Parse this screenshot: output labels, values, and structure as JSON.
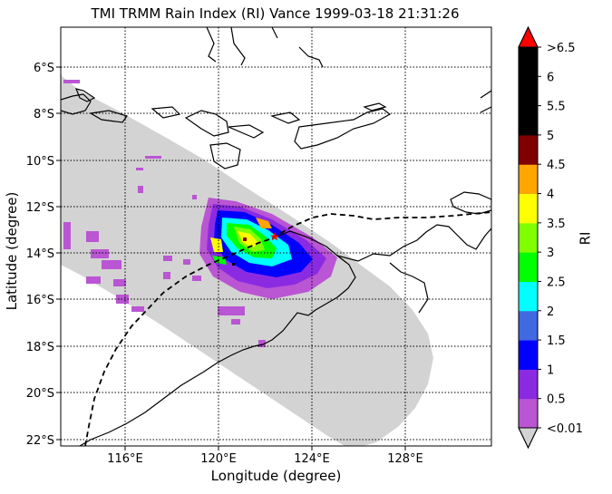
{
  "title": "TMI TRMM Rain Index (RI) Vance 1999-03-18 21:31:26",
  "xlabel": "Longitude (degree)",
  "ylabel": "Latitude (degree)",
  "colorbar": {
    "label": "RI",
    "tick_labels": [
      "<0.01",
      "0.5",
      "1",
      "1.5",
      "2",
      "2.5",
      "3",
      "3.5",
      "4",
      "4.5",
      "5",
      "5.5",
      "6",
      ">6.5"
    ],
    "colors": [
      "#ba55d3",
      "#8a2be2",
      "#0000ff",
      "#4169e1",
      "#00ffff",
      "#00ff00",
      "#7fff00",
      "#ffff00",
      "#ffa500",
      "#800000",
      "#000000",
      "#000000",
      "#000000"
    ],
    "under_color": "#d3d3d3",
    "over_color": "#ff0000"
  },
  "map": {
    "lon_ticks": [
      "116°E",
      "120°E",
      "124°E",
      "128°E"
    ],
    "lat_ticks": [
      "6°S",
      "8°S",
      "10°S",
      "12°S",
      "14°S",
      "16°S",
      "18°S",
      "20°S",
      "22°S"
    ],
    "swath_color": "#d3d3d3",
    "gridlines": "dotted",
    "storm_track": "dashed black line",
    "storm_center_marker": "red star"
  }
}
